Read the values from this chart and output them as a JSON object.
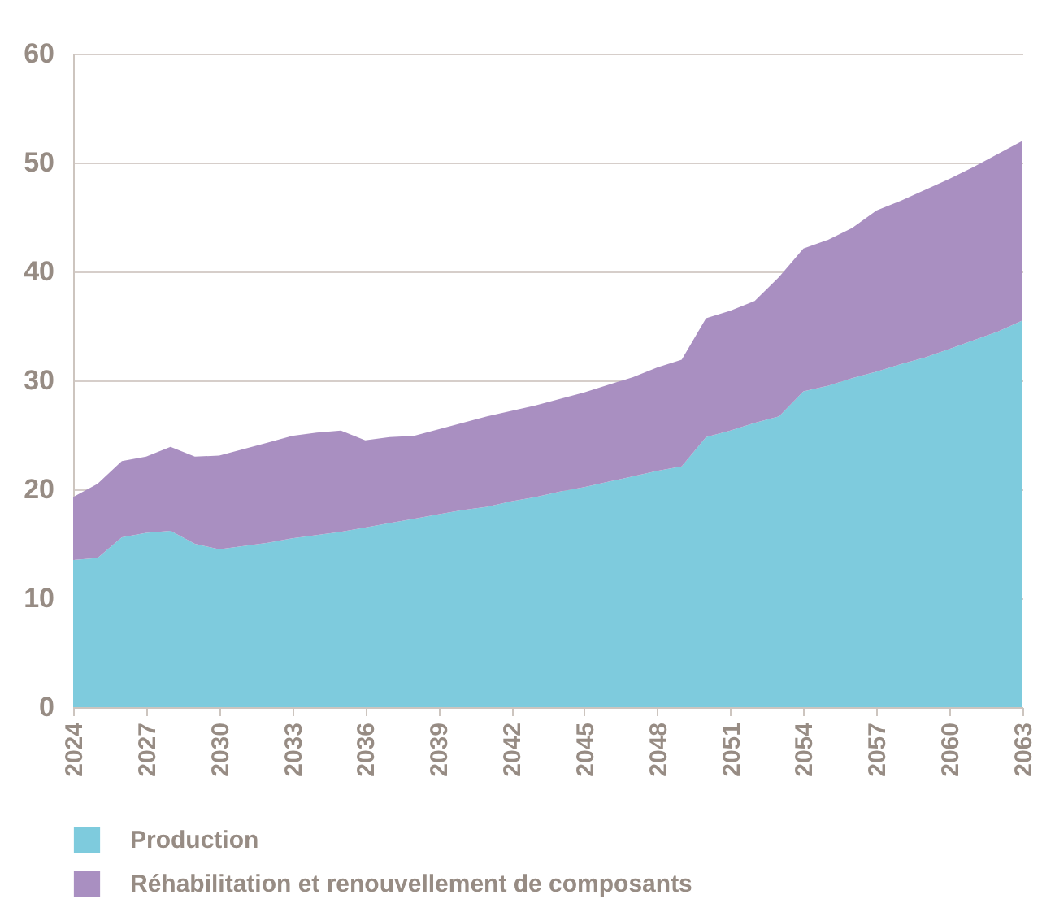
{
  "chart_data": {
    "type": "area",
    "stacked": true,
    "grid": "y",
    "legend": "bottom",
    "x": [
      2024,
      2025,
      2026,
      2027,
      2028,
      2029,
      2030,
      2031,
      2032,
      2033,
      2034,
      2035,
      2036,
      2037,
      2038,
      2039,
      2040,
      2041,
      2042,
      2043,
      2044,
      2045,
      2046,
      2047,
      2048,
      2049,
      2050,
      2051,
      2052,
      2053,
      2054,
      2055,
      2056,
      2057,
      2058,
      2059,
      2060,
      2061,
      2062,
      2063
    ],
    "xlim": [
      2024,
      2063
    ],
    "xticks": [
      2024,
      2027,
      2030,
      2033,
      2036,
      2039,
      2042,
      2045,
      2048,
      2051,
      2054,
      2057,
      2060,
      2063
    ],
    "ylim": [
      0,
      60
    ],
    "yticks": [
      0,
      10,
      20,
      30,
      40,
      50,
      60
    ],
    "series": [
      {
        "name": "Production",
        "color": "#7ecbdd",
        "values": [
          13.5,
          13.7,
          15.6,
          16.0,
          16.2,
          15.0,
          14.5,
          14.8,
          15.1,
          15.5,
          15.8,
          16.1,
          16.5,
          16.9,
          17.3,
          17.7,
          18.1,
          18.4,
          18.9,
          19.3,
          19.8,
          20.2,
          20.7,
          21.2,
          21.7,
          22.1,
          24.8,
          25.4,
          26.1,
          26.7,
          29.0,
          29.5,
          30.2,
          30.8,
          31.5,
          32.1,
          32.9,
          33.7,
          34.5,
          35.5
        ]
      },
      {
        "name": "Réhabilitation et renouvellement de composants",
        "color": "#a98fc1",
        "values": [
          5.8,
          6.8,
          7.0,
          7.0,
          7.7,
          8.0,
          8.6,
          8.9,
          9.2,
          9.4,
          9.4,
          9.3,
          8.0,
          7.9,
          7.6,
          7.8,
          8.0,
          8.3,
          8.3,
          8.4,
          8.5,
          8.7,
          8.9,
          9.1,
          9.5,
          9.8,
          10.9,
          11.0,
          11.2,
          12.8,
          13.1,
          13.4,
          13.8,
          14.8,
          15.0,
          15.4,
          15.6,
          15.9,
          16.3,
          16.5
        ]
      }
    ]
  }
}
